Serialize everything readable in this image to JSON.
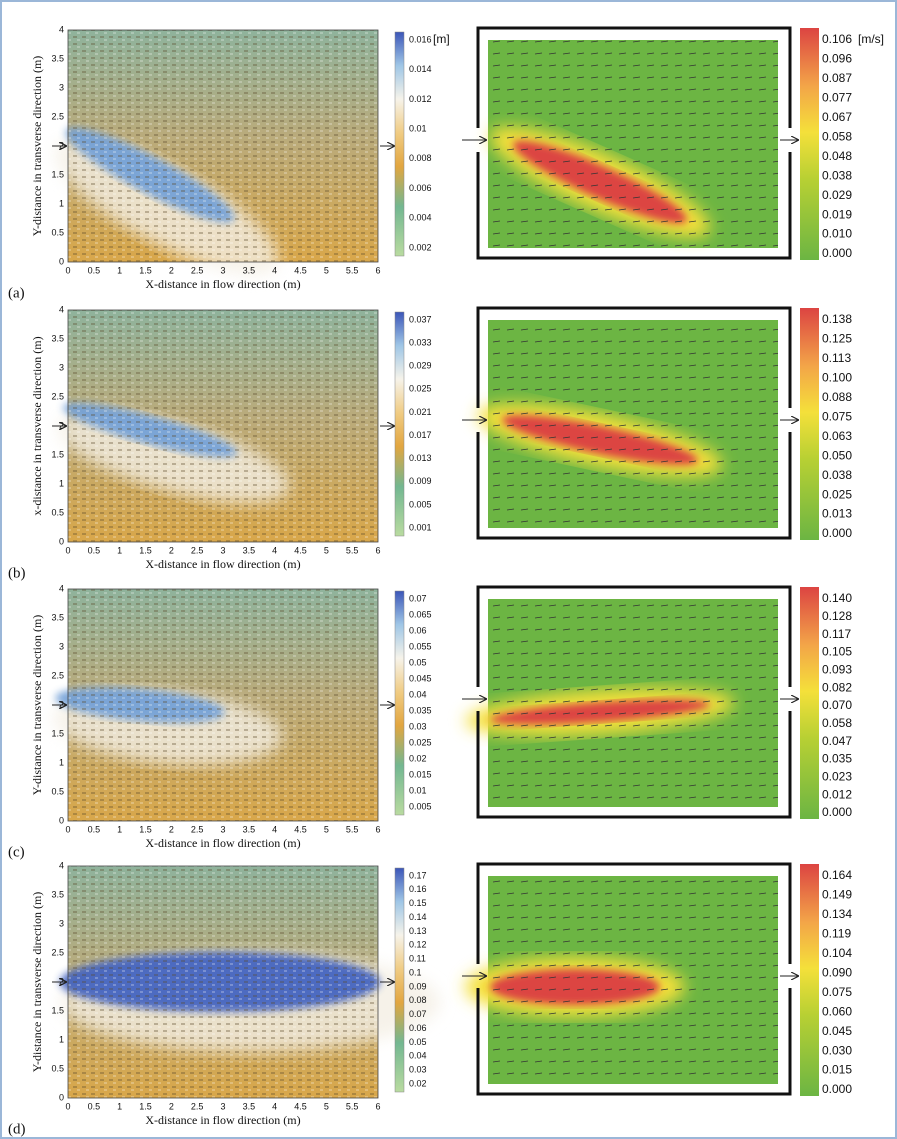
{
  "panels": [
    {
      "label": "(a)",
      "map": {
        "x_label": "X-distance in flow direction (m)",
        "y_label": "Y-distance in transverse direction (m)",
        "x_ticks": [
          "0",
          "0.5",
          "1",
          "1.5",
          "2",
          "2.5",
          "3",
          "3.5",
          "4",
          "4.5",
          "5",
          "5.5",
          "6"
        ],
        "y_ticks": [
          "0",
          "0.5",
          "1",
          "1.5",
          "2",
          "2.5",
          "3",
          "3.5",
          "4"
        ],
        "colorbar_ticks": [
          "0.002",
          "0.004",
          "0.006",
          "0.008",
          "0.01",
          "0.012",
          "0.014",
          "0.016"
        ],
        "colorbar_unit": "[m]"
      },
      "velocity": {
        "colorbar_ticks": [
          "0.000",
          "0.010",
          "0.019",
          "0.029",
          "0.038",
          "0.048",
          "0.058",
          "0.067",
          "0.077",
          "0.087",
          "0.096",
          "0.106"
        ],
        "colorbar_unit": "[m/s]"
      }
    },
    {
      "label": "(b)",
      "map": {
        "x_label": "X-distance in flow direction (m)",
        "y_label": "x-distance in transverse direction (m)",
        "x_ticks": [
          "0",
          "0.5",
          "1",
          "1.5",
          "2",
          "2.5",
          "3",
          "3.5",
          "4",
          "4.5",
          "5",
          "5.5",
          "6"
        ],
        "y_ticks": [
          "0",
          "0.5",
          "1",
          "1.5",
          "2",
          "2.5",
          "3",
          "3.5",
          "4"
        ],
        "colorbar_ticks": [
          "0.001",
          "0.005",
          "0.009",
          "0.013",
          "0.017",
          "0.021",
          "0.025",
          "0.029",
          "0.033",
          "0.037"
        ]
      },
      "velocity": {
        "colorbar_ticks": [
          "0.000",
          "0.013",
          "0.025",
          "0.038",
          "0.050",
          "0.063",
          "0.075",
          "0.088",
          "0.100",
          "0.113",
          "0.125",
          "0.138"
        ]
      }
    },
    {
      "label": "(c)",
      "map": {
        "x_label": "X-distance in flow direction (m)",
        "y_label": "Y-distance in transverse direction (m)",
        "x_ticks": [
          "0",
          "0.5",
          "1",
          "1.5",
          "2",
          "2.5",
          "3",
          "3.5",
          "4",
          "4.5",
          "5",
          "5.5",
          "6"
        ],
        "y_ticks": [
          "0",
          "0.5",
          "1",
          "1.5",
          "2",
          "2.5",
          "3",
          "3.5",
          "4"
        ],
        "colorbar_ticks": [
          "0.005",
          "0.01",
          "0.015",
          "0.02",
          "0.025",
          "0.03",
          "0.035",
          "0.04",
          "0.045",
          "0.05",
          "0.055",
          "0.06",
          "0.065",
          "0.07"
        ]
      },
      "velocity": {
        "colorbar_ticks": [
          "0.000",
          "0.012",
          "0.023",
          "0.035",
          "0.047",
          "0.058",
          "0.070",
          "0.082",
          "0.093",
          "0.105",
          "0.117",
          "0.128",
          "0.140"
        ]
      }
    },
    {
      "label": "(d)",
      "map": {
        "x_label": "X-distance in flow direction (m)",
        "y_label": "Y-distance in transverse direction (m)",
        "x_ticks": [
          "0",
          "0.5",
          "1",
          "1.5",
          "2",
          "2.5",
          "3",
          "3.5",
          "4",
          "4.5",
          "5",
          "5.5",
          "6"
        ],
        "y_ticks": [
          "0",
          "0.5",
          "1",
          "1.5",
          "2",
          "2.5",
          "3",
          "3.5",
          "4"
        ],
        "colorbar_ticks": [
          "0.02",
          "0.03",
          "0.04",
          "0.05",
          "0.06",
          "0.07",
          "0.08",
          "0.09",
          "0.1",
          "0.11",
          "0.12",
          "0.13",
          "0.14",
          "0.15",
          "0.16",
          "0.17"
        ]
      },
      "velocity": {
        "colorbar_ticks": [
          "0.000",
          "0.015",
          "0.030",
          "0.045",
          "0.060",
          "0.075",
          "0.090",
          "0.104",
          "0.119",
          "0.134",
          "0.149",
          "0.164"
        ]
      }
    }
  ]
}
